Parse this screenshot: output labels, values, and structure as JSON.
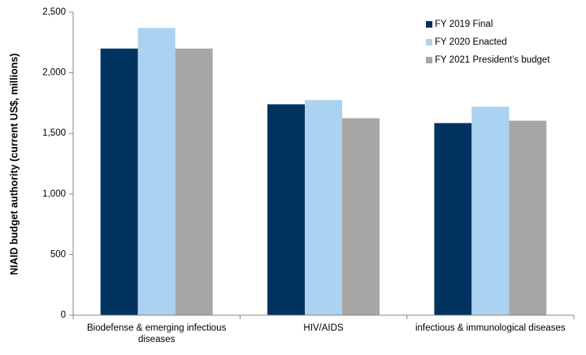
{
  "chart_data": {
    "type": "bar",
    "title": "",
    "xlabel": "",
    "ylabel": "NIAID budget authority (current US$, millions)",
    "ylim": [
      0,
      2500
    ],
    "yticks": [
      0,
      500,
      1000,
      1500,
      2000,
      2500
    ],
    "ytick_labels": [
      "0",
      "500",
      "1,000",
      "1,500",
      "2,000",
      "2,500"
    ],
    "grid": false,
    "legend_position": "top-right",
    "categories": [
      [
        "Biodefense & emerging infectious",
        "diseases"
      ],
      [
        "HIV/AIDS"
      ],
      [
        "infectious & immunological diseases"
      ]
    ],
    "series": [
      {
        "name": "FY 2019 Final",
        "color": "#003360",
        "values": [
          2200,
          1740,
          1585
        ]
      },
      {
        "name": "FY 2020 Enacted",
        "color": "#abd2f0",
        "values": [
          2370,
          1775,
          1720
        ]
      },
      {
        "name": "FY 2021 President’s budget",
        "color": "#a6a6a6",
        "values": [
          2200,
          1625,
          1605
        ]
      }
    ]
  }
}
